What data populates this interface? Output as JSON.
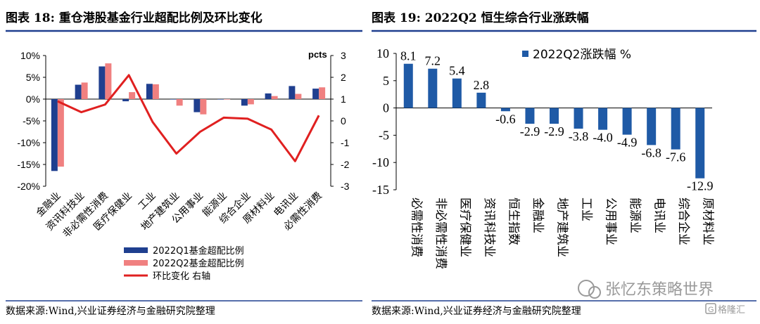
{
  "header": {
    "left_title": "图表 18:  重仓港股基金行业超配比例及环比变化",
    "right_title": "图表 19:  2022Q2 恒生综合行业涨跌幅"
  },
  "footer": {
    "left_source": "数据来源:Wind,兴业证券经济与金融研究院整理",
    "right_source": "数据来源:Wind,兴业证券经济与金融研究院整理"
  },
  "watermark": {
    "account": "张忆东策略世界",
    "logo_text": "格隆汇",
    "logo_letter": "G"
  },
  "colors": {
    "q1": "#1f3f8f",
    "q2": "#f08080",
    "line": "#e02020",
    "bar": "#1f5aa6"
  },
  "chart_data": [
    {
      "type": "bar",
      "categories": [
        "金融业",
        "资讯科技业",
        "非必需性消费",
        "医疗保健业",
        "工业",
        "地产建筑业",
        "公用事业",
        "能源业",
        "综合企业",
        "原材料业",
        "电讯业",
        "必需性消费"
      ],
      "series": [
        {
          "name": "2022Q1基金超配比例",
          "axis": "left",
          "values": [
            -16.5,
            3.3,
            7.5,
            -0.5,
            3.5,
            0.0,
            -3.0,
            0.0,
            -1.5,
            1.3,
            3.0,
            2.4
          ]
        },
        {
          "name": "2022Q2基金超配比例",
          "axis": "left",
          "values": [
            -15.5,
            3.8,
            8.2,
            1.6,
            3.4,
            -1.5,
            -3.5,
            0.0,
            -1.2,
            0.7,
            1.2,
            2.7
          ]
        },
        {
          "name": "环比变化 右轴",
          "axis": "right",
          "type": "line",
          "values": [
            0.9,
            0.4,
            0.75,
            2.1,
            -0.05,
            -1.5,
            -0.5,
            0.15,
            0.1,
            -0.4,
            -1.85,
            0.25
          ]
        }
      ],
      "y_left": {
        "ylim": [
          -20,
          10
        ],
        "ticks": [
          "10%",
          "5%",
          "0%",
          "-5%",
          "-10%",
          "-15%",
          "-20%"
        ]
      },
      "y_right": {
        "ylim": [
          -3,
          3
        ],
        "label": "pcts",
        "ticks": [
          "3",
          "2",
          "1",
          "0",
          "-1",
          "-2",
          "-3"
        ]
      },
      "legend_position": "bottom-left"
    },
    {
      "type": "bar",
      "categories": [
        "必需性消费",
        "非必需性消费",
        "医疗保健业",
        "资讯科技业",
        "恒生指数",
        "金融业",
        "地产建筑业",
        "工业",
        "公用事业",
        "能源业",
        "电讯业",
        "综合企业",
        "原材料业"
      ],
      "series": [
        {
          "name": "2022Q2涨跌幅 %",
          "values": [
            8.1,
            7.2,
            5.4,
            2.8,
            -0.6,
            -2.9,
            -2.9,
            -3.8,
            -4.0,
            -4.9,
            -6.8,
            -7.6,
            -12.9
          ],
          "labels": [
            "8.1",
            "7.2",
            "5.4",
            "2.8",
            "-0.6",
            "-2.9",
            "-2.9",
            "-3.8",
            "-4.0",
            "-4.9",
            "-6.8",
            "-7.6",
            "-12.9"
          ]
        }
      ],
      "ylim": [
        -15,
        10
      ],
      "ticks": [
        "10",
        "5",
        "0",
        "-5",
        "-10",
        "-15"
      ],
      "legend_position": "top-right"
    }
  ]
}
